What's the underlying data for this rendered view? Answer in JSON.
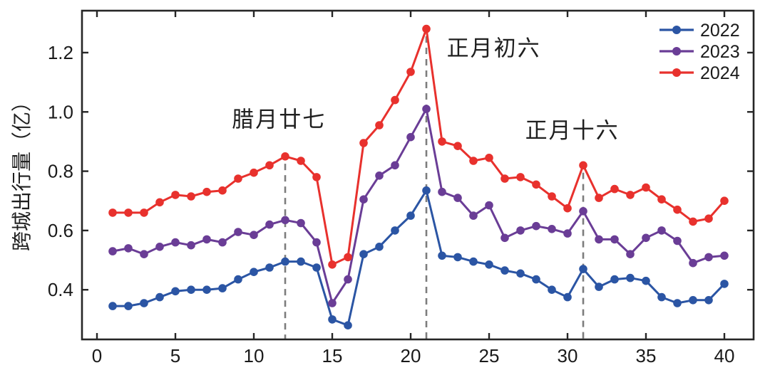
{
  "figure": {
    "background": "#ffffff",
    "axis_color": "#262626",
    "tick_label_color": "#1a1a1a",
    "annotation_color": "#1f1f1f",
    "dashed_line_color": "#7d7d7d"
  },
  "chart_data": {
    "type": "line",
    "title": "",
    "xlabel": "",
    "ylabel": "跨城出行量（亿）",
    "x": [
      1,
      2,
      3,
      4,
      5,
      6,
      7,
      8,
      9,
      10,
      11,
      12,
      13,
      14,
      15,
      16,
      17,
      18,
      19,
      20,
      21,
      22,
      23,
      24,
      25,
      26,
      27,
      28,
      29,
      30,
      31,
      32,
      33,
      34,
      35,
      36,
      37,
      38,
      39,
      40
    ],
    "series": [
      {
        "name": "2022",
        "color": "#2b55a4",
        "values": [
          0.345,
          0.345,
          0.355,
          0.375,
          0.395,
          0.4,
          0.4,
          0.405,
          0.435,
          0.46,
          0.475,
          0.495,
          0.495,
          0.475,
          0.3,
          0.28,
          0.52,
          0.545,
          0.6,
          0.65,
          0.735,
          0.515,
          0.51,
          0.495,
          0.485,
          0.465,
          0.455,
          0.435,
          0.4,
          0.375,
          0.47,
          0.41,
          0.435,
          0.44,
          0.43,
          0.375,
          0.355,
          0.365,
          0.365,
          0.42
        ]
      },
      {
        "name": "2023",
        "color": "#6a3d96",
        "values": [
          0.53,
          0.54,
          0.52,
          0.545,
          0.56,
          0.55,
          0.57,
          0.56,
          0.595,
          0.585,
          0.62,
          0.635,
          0.625,
          0.56,
          0.355,
          0.435,
          0.705,
          0.785,
          0.82,
          0.915,
          1.01,
          0.73,
          0.71,
          0.65,
          0.685,
          0.575,
          0.6,
          0.615,
          0.605,
          0.59,
          0.665,
          0.57,
          0.57,
          0.52,
          0.575,
          0.6,
          0.565,
          0.49,
          0.51,
          0.515
        ]
      },
      {
        "name": "2024",
        "color": "#e8312d",
        "values": [
          0.66,
          0.66,
          0.66,
          0.695,
          0.72,
          0.715,
          0.73,
          0.735,
          0.775,
          0.795,
          0.82,
          0.85,
          0.835,
          0.78,
          0.485,
          0.51,
          0.895,
          0.955,
          1.04,
          1.135,
          1.28,
          0.9,
          0.885,
          0.835,
          0.845,
          0.775,
          0.78,
          0.755,
          0.715,
          0.675,
          0.82,
          0.71,
          0.74,
          0.72,
          0.745,
          0.705,
          0.67,
          0.63,
          0.64,
          0.7
        ]
      }
    ],
    "xticks": [
      "0",
      "5",
      "10",
      "15",
      "20",
      "25",
      "30",
      "35",
      "40"
    ],
    "xtick_values": [
      0,
      5,
      10,
      15,
      20,
      25,
      30,
      35,
      40
    ],
    "yticks": [
      "0.4",
      "0.6",
      "0.8",
      "1.0",
      "1.2"
    ],
    "ytick_values": [
      0.4,
      0.6,
      0.8,
      1.0,
      1.2
    ],
    "xlim": [
      -0.955,
      41.864
    ],
    "ylim": [
      0.2325,
      1.3415
    ],
    "grid": false,
    "legend": {
      "position": "top-right",
      "entries": [
        {
          "label": "2022",
          "color": "#2b55a4"
        },
        {
          "label": "2023",
          "color": "#6a3d96"
        },
        {
          "label": "2024",
          "color": "#e8312d"
        }
      ]
    },
    "annotations": [
      {
        "text": "腊月廿七",
        "x": 11.6,
        "y": 0.975
      },
      {
        "text": "正月初六",
        "x": 25.3,
        "y": 1.215
      },
      {
        "text": "正月十六",
        "x": 30.3,
        "y": 0.938
      }
    ],
    "dashed_lines": [
      {
        "x": 12,
        "y_top": 0.825
      },
      {
        "x": 21,
        "y_top": 1.255
      },
      {
        "x": 31,
        "y_top": 0.795
      }
    ]
  }
}
